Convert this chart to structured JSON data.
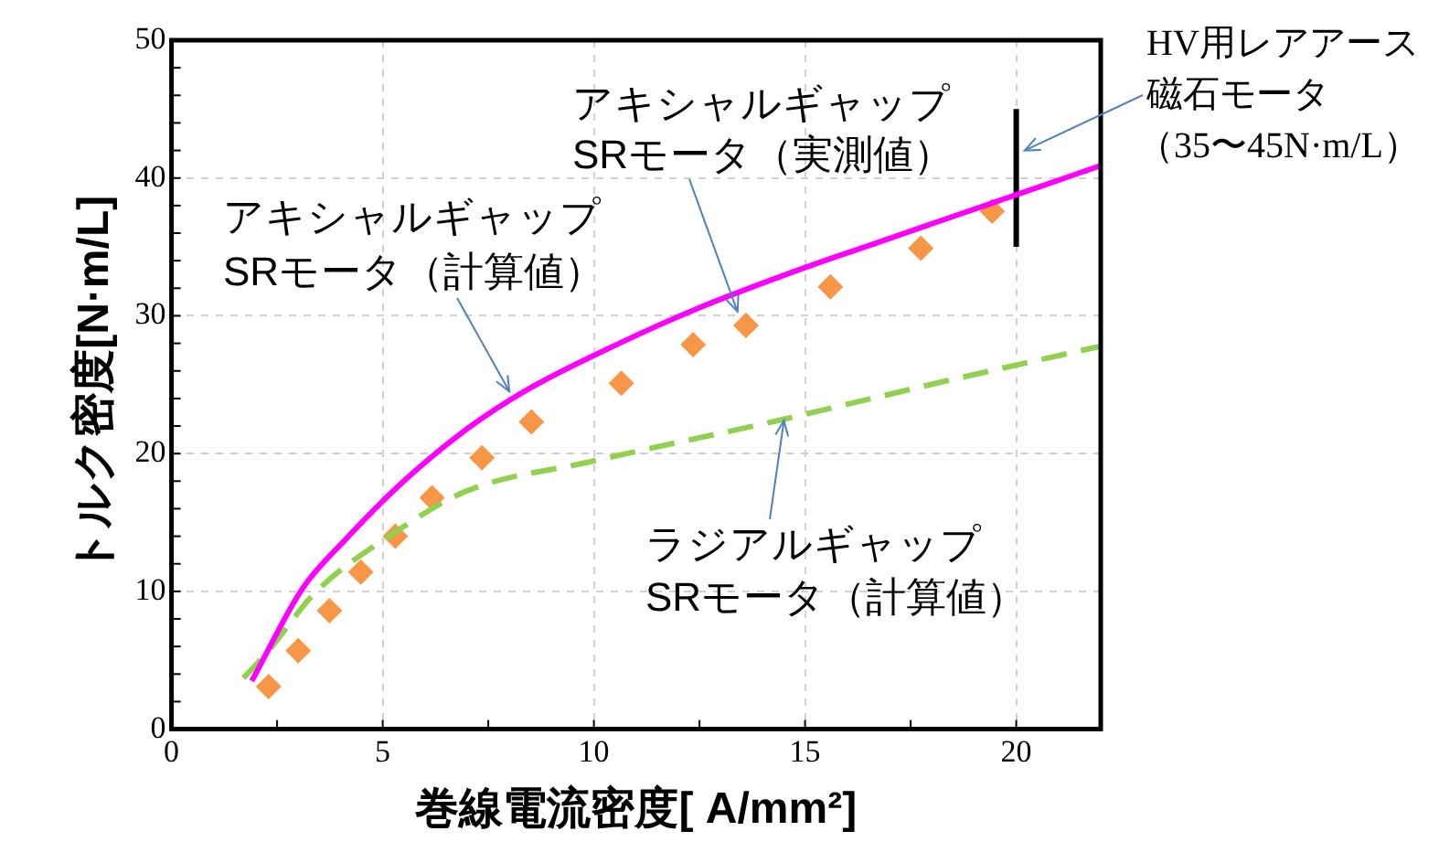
{
  "chart_data": {
    "type": "line",
    "xlabel": "巻線電流密度[ A/mm²]",
    "ylabel": "トルク密度[N·m/L]",
    "xlim": [
      0,
      22
    ],
    "xticks": [
      0,
      5,
      10,
      15,
      20
    ],
    "ylim": [
      0,
      50
    ],
    "yticks": [
      0,
      10,
      20,
      30,
      40,
      50
    ],
    "grid": true,
    "legend": false,
    "series": [
      {
        "color": "#ff00ff",
        "line_style": "solid",
        "marker": "none",
        "x": [
          1.9,
          3.1,
          4.1,
          5.5,
          7.0,
          8.4,
          10.6,
          12.35,
          15.0,
          16.7,
          20.2,
          22
        ],
        "values": [
          3.5,
          10.2,
          13.7,
          18.0,
          21.8,
          24.6,
          28.0,
          30.4,
          33.5,
          35.3,
          39.0,
          40.9
        ]
      },
      {
        "color": "#92d050",
        "line_style": "dashed",
        "marker": "none",
        "x": [
          1.7,
          2.3,
          3.4,
          5.25,
          7.0,
          9.9,
          14.5,
          18.1,
          22
        ],
        "values": [
          3.7,
          5.7,
          9.9,
          14.2,
          17.3,
          19.4,
          22.5,
          25.1,
          27.8
        ]
      },
      {
        "type": "scatter",
        "color": "#f79646",
        "marker": "diamond",
        "x": [
          2.3,
          3.0,
          3.74,
          4.48,
          5.3,
          6.17,
          7.35,
          8.52,
          10.65,
          12.35,
          13.6,
          15.6,
          17.74,
          19.43
        ],
        "values": [
          3.1,
          5.7,
          8.6,
          11.4,
          14.0,
          16.8,
          19.7,
          22.3,
          25.1,
          27.9,
          29.3,
          32.1,
          34.9,
          37.6
        ]
      },
      {
        "color": "#000000",
        "line_style": "solid",
        "marker": "none",
        "x": [
          20,
          20
        ],
        "values": [
          35,
          45
        ]
      }
    ],
    "annotations": [
      "アキシャルギャップ",
      {
        "text": "SRモータ（計算値）",
        "x": 8,
        "y": 24.5
      },
      "アキシャルギャップ",
      {
        "text": "SRモータ（実測値）",
        "x": 13.4,
        "y": 30.3
      },
      {
        "text": "ラジアルギャップ",
        "x": 14.5,
        "y": 22.4
      },
      "SRモータ（計算値）",
      "HV用レアアース",
      {
        "text": "磁石モータ",
        "x": 20.2,
        "y": 42
      },
      "（35〜45N·m/L）"
    ]
  }
}
